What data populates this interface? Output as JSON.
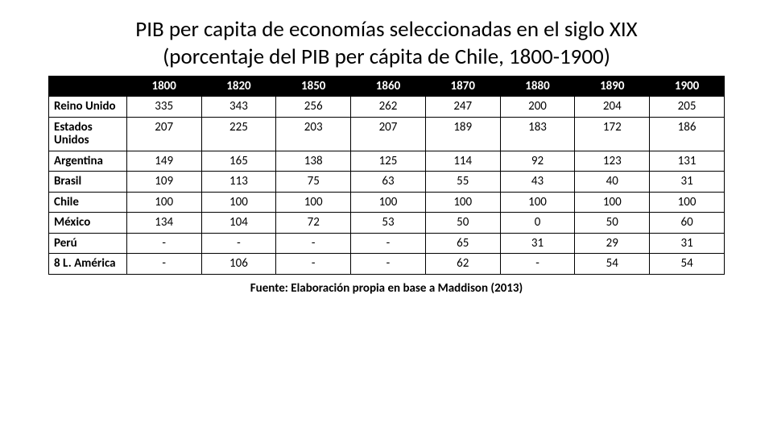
{
  "title_line1": "PIB per capita de economías seleccionadas en el siglo XIX",
  "title_line2": "(porcentaje del PIB per cápita de Chile, 1800-1900)",
  "table": {
    "type": "table",
    "columns": [
      "1800",
      "1820",
      "1850",
      "1860",
      "1870",
      "1880",
      "1890",
      "1900"
    ],
    "rows": [
      {
        "label": "Reino Unido",
        "values": [
          "335",
          "343",
          "256",
          "262",
          "247",
          "200",
          "204",
          "205"
        ]
      },
      {
        "label": "Estados Unidos",
        "values": [
          "207",
          "225",
          "203",
          "207",
          "189",
          "183",
          "172",
          "186"
        ]
      },
      {
        "label": "Argentina",
        "values": [
          "149",
          "165",
          "138",
          "125",
          "114",
          "92",
          "123",
          "131"
        ]
      },
      {
        "label": "Brasil",
        "values": [
          "109",
          "113",
          "75",
          "63",
          "55",
          "43",
          "40",
          "31"
        ]
      },
      {
        "label": "Chile",
        "values": [
          "100",
          "100",
          "100",
          "100",
          "100",
          "100",
          "100",
          "100"
        ]
      },
      {
        "label": "México",
        "values": [
          "134",
          "104",
          "72",
          "53",
          "50",
          "0",
          "50",
          "60"
        ]
      },
      {
        "label": "Perú",
        "values": [
          "-",
          "-",
          "-",
          "-",
          "65",
          "31",
          "29",
          "31"
        ]
      },
      {
        "label": "8 L. América",
        "values": [
          "-",
          "106",
          "-",
          "-",
          "62",
          "-",
          "54",
          "54"
        ]
      }
    ],
    "header_bg": "#000000",
    "header_fg": "#ffffff",
    "cell_bg": "#ffffff",
    "cell_fg": "#000000",
    "border_color": "#000000",
    "header_fontsize": 15,
    "cell_fontsize": 15,
    "rowlabel_fontweight": 700
  },
  "source": "Fuente: Elaboración propia en base a Maddison (2013)"
}
